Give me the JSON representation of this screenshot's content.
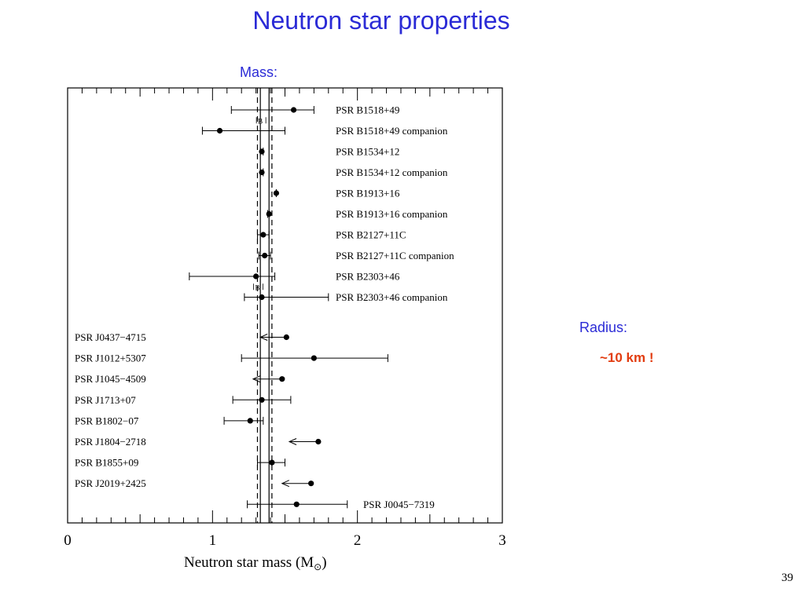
{
  "slide": {
    "title": "Neutron star properties",
    "mass_label": "Mass:",
    "radius_label": "Radius:",
    "radius_value": "~10 km !",
    "page_number": "39"
  },
  "colors": {
    "accent": "#2b2bd6",
    "highlight": "#e23c10"
  },
  "chart_data": {
    "type": "scatter",
    "xlabel": "Neutron star mass (M",
    "xlabel_sub": "⊙",
    "xlabel_close": ")",
    "xlim": [
      0,
      3
    ],
    "x_ticks": [
      "0",
      "1",
      "2",
      "3"
    ],
    "grid": false,
    "reference_lines": [
      1.31,
      1.33,
      1.39,
      1.41
    ],
    "points": [
      {
        "label": "PSR B1518+49",
        "side": "right",
        "value": 1.56,
        "err_lo": 1.13,
        "err_hi": 1.7
      },
      {
        "label": "PSR B1518+49 companion",
        "side": "right",
        "value": 1.05,
        "err_lo": 0.93,
        "err_hi": 1.5
      },
      {
        "label": "PSR B1534+12",
        "side": "right",
        "value": 1.34,
        "err_lo": 1.33,
        "err_hi": 1.35
      },
      {
        "label": "PSR B1534+12 companion",
        "side": "right",
        "value": 1.34,
        "err_lo": 1.33,
        "err_hi": 1.35
      },
      {
        "label": "PSR B1913+16",
        "side": "right",
        "value": 1.44,
        "err_lo": 1.44,
        "err_hi": 1.44
      },
      {
        "label": "PSR B1913+16 companion",
        "side": "right",
        "value": 1.39,
        "err_lo": 1.38,
        "err_hi": 1.39
      },
      {
        "label": "PSR B2127+11C",
        "side": "right",
        "value": 1.35,
        "err_lo": 1.31,
        "err_hi": 1.39
      },
      {
        "label": "PSR B2127+11C companion",
        "side": "right",
        "value": 1.36,
        "err_lo": 1.32,
        "err_hi": 1.4
      },
      {
        "label": "PSR B2303+46",
        "side": "right",
        "value": 1.3,
        "err_lo": 0.84,
        "err_hi": 1.43
      },
      {
        "label": "PSR B2303+46 companion",
        "side": "right",
        "value": 1.34,
        "err_lo": 1.22,
        "err_hi": 1.8
      },
      {
        "label": "PSR J0437−4715",
        "side": "left",
        "value": 1.51,
        "err_lo": 1.31,
        "err_hi": 1.51,
        "limit": 1.33
      },
      {
        "label": "PSR J1012+5307",
        "side": "left",
        "value": 1.7,
        "err_lo": 1.2,
        "err_hi": 2.21
      },
      {
        "label": "PSR J1045−4509",
        "side": "left",
        "value": 1.48,
        "err_lo": 1.28,
        "err_hi": 1.48,
        "limit": 1.28
      },
      {
        "label": "PSR J1713+07",
        "side": "left",
        "value": 1.34,
        "err_lo": 1.14,
        "err_hi": 1.54
      },
      {
        "label": "PSR B1802−07",
        "side": "left",
        "value": 1.26,
        "err_lo": 1.08,
        "err_hi": 1.35
      },
      {
        "label": "PSR J1804−2718",
        "side": "left",
        "value": 1.73,
        "err_lo": 1.53,
        "err_hi": 1.73,
        "limit": 1.53
      },
      {
        "label": "PSR B1855+09",
        "side": "left",
        "value": 1.41,
        "err_lo": 1.31,
        "err_hi": 1.5
      },
      {
        "label": "PSR J2019+2425",
        "side": "left",
        "value": 1.68,
        "err_lo": 1.48,
        "err_hi": 1.68,
        "limit": 1.48
      },
      {
        "label": "PSR J0045−7319",
        "side": "far-right",
        "value": 1.58,
        "err_lo": 1.24,
        "err_hi": 1.93
      }
    ],
    "bracket_labels": [
      {
        "label": "B",
        "x": 1.33,
        "after_row": 0
      },
      {
        "label": "B",
        "x": 1.31,
        "after_row": 8
      }
    ]
  }
}
